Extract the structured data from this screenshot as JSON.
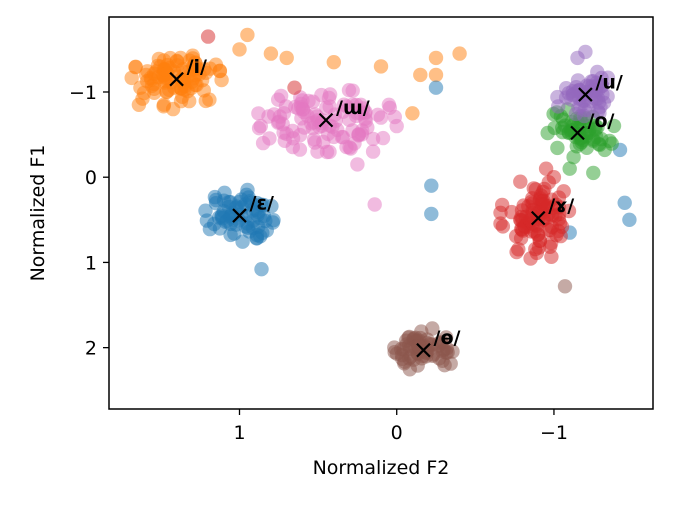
{
  "chart_data": {
    "type": "scatter",
    "xlabel": "Normalized F2",
    "ylabel": "Normalized F1",
    "x_inverted": true,
    "y_inverted": true,
    "xlim": [
      1.83,
      -1.63
    ],
    "ylim": [
      -1.88,
      2.72
    ],
    "xticks": [
      {
        "value": 1,
        "label": "1"
      },
      {
        "value": 0,
        "label": "0"
      },
      {
        "value": -1,
        "label": "−1"
      }
    ],
    "yticks": [
      {
        "value": -1,
        "label": "−1"
      },
      {
        "value": 0,
        "label": "0"
      },
      {
        "value": 1,
        "label": "1"
      },
      {
        "value": 2,
        "label": "2"
      }
    ],
    "grid": false,
    "legend": "none",
    "marker_alpha": 0.5,
    "series": [
      {
        "label": "/i/",
        "color": "#ff7f0e",
        "centroid": [
          1.4,
          -1.15
        ],
        "spread": [
          0.13,
          0.16
        ],
        "n": 95,
        "seed": 11,
        "outliers": [
          [
            0.95,
            -1.67
          ],
          [
            1.0,
            -1.5
          ],
          [
            0.8,
            -1.45
          ],
          [
            0.7,
            -1.4
          ],
          [
            0.4,
            -1.35
          ],
          [
            0.1,
            -1.3
          ],
          [
            -0.25,
            -1.4
          ],
          [
            -0.4,
            -1.45
          ],
          [
            -0.25,
            -1.2
          ],
          [
            -0.15,
            -1.2
          ],
          [
            -0.1,
            -0.75
          ],
          [
            1.63,
            -1.05
          ],
          [
            1.64,
            -0.85
          ]
        ]
      },
      {
        "label": "/ɯ/",
        "color": "#e377c2",
        "centroid": [
          0.45,
          -0.67
        ],
        "spread": [
          0.2,
          0.17
        ],
        "n": 95,
        "seed": 23,
        "outliers": [
          [
            0.85,
            -0.4
          ],
          [
            0.75,
            -0.65
          ],
          [
            0.6,
            -0.9
          ],
          [
            0.15,
            -0.45
          ],
          [
            0.1,
            -0.7
          ],
          [
            0.0,
            -0.6
          ],
          [
            0.05,
            -0.85
          ],
          [
            0.3,
            -0.35
          ],
          [
            0.15,
            -0.3
          ],
          [
            0.25,
            -0.15
          ],
          [
            0.14,
            0.32
          ]
        ]
      },
      {
        "label": "/ɛ/",
        "color": "#1f77b4",
        "centroid": [
          1.0,
          0.45
        ],
        "spread": [
          0.1,
          0.14
        ],
        "n": 70,
        "seed": 37,
        "outliers": [
          [
            -0.25,
            -1.05
          ],
          [
            -0.22,
            0.1
          ],
          [
            -0.22,
            0.43
          ],
          [
            -1.1,
            0.65
          ],
          [
            -1.45,
            0.3
          ],
          [
            -1.48,
            0.5
          ],
          [
            -1.42,
            -0.32
          ],
          [
            0.86,
            1.08
          ]
        ]
      },
      {
        "label": "/ɤ/",
        "color": "#d62728",
        "centroid": [
          -0.9,
          0.48
        ],
        "spread": [
          0.11,
          0.22
        ],
        "n": 90,
        "seed": 49,
        "outliers": [
          [
            1.2,
            -1.65
          ],
          [
            0.65,
            -1.05
          ],
          [
            -0.95,
            -0.1
          ],
          [
            -1.0,
            0.0
          ]
        ]
      },
      {
        "label": "/ɵ/",
        "color": "#8c564b",
        "centroid": [
          -0.17,
          2.03
        ],
        "spread": [
          0.1,
          0.12
        ],
        "n": 70,
        "seed": 61,
        "outliers": [
          [
            -1.07,
            1.28
          ]
        ]
      },
      {
        "label": "/o/",
        "color": "#2ca02c",
        "centroid": [
          -1.15,
          -0.52
        ],
        "spread": [
          0.11,
          0.13
        ],
        "n": 55,
        "seed": 73,
        "outliers": [
          [
            -1.25,
            -0.05
          ],
          [
            -1.1,
            -0.1
          ]
        ]
      },
      {
        "label": "/u/",
        "color": "#9467bd",
        "centroid": [
          -1.2,
          -0.97
        ],
        "spread": [
          0.09,
          0.13
        ],
        "n": 55,
        "seed": 89,
        "outliers": [
          [
            -1.15,
            -1.4
          ],
          [
            -1.2,
            -1.47
          ]
        ]
      }
    ]
  }
}
